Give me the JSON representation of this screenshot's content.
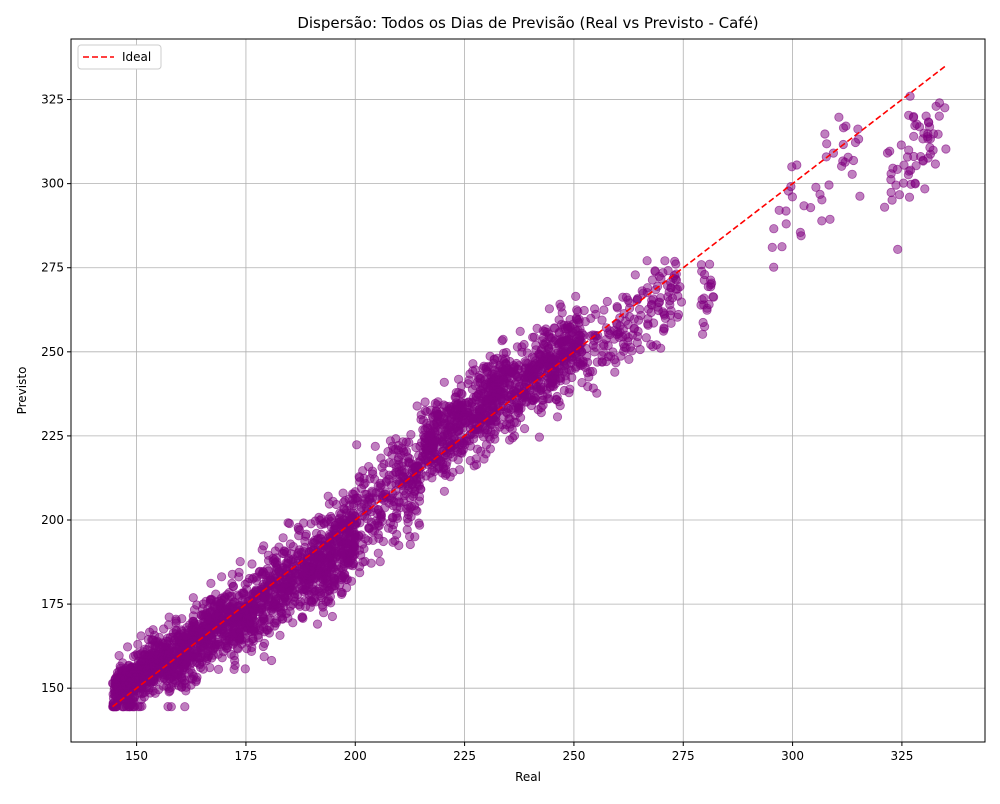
{
  "chart_data": {
    "type": "scatter",
    "title": "Dispersão: Todos os Dias de Previsão (Real vs Previsto - Café)",
    "xlabel": "Real",
    "ylabel": "Previsto",
    "xlim": [
      135,
      344
    ],
    "ylim": [
      134,
      343
    ],
    "xticks": [
      150,
      175,
      200,
      225,
      250,
      275,
      300,
      325
    ],
    "yticks": [
      150,
      175,
      200,
      225,
      250,
      275,
      300,
      325
    ],
    "grid": true,
    "legend_position": "top-left",
    "colors": {
      "points": "#800080",
      "ideal": "#ff0000"
    },
    "series": [
      {
        "name": "",
        "kind": "points",
        "density_model": [
          {
            "x_range": [
              144.5,
              157
            ],
            "center_offset": 3,
            "spread": 7,
            "count": 420
          },
          {
            "x_range": [
              157,
              172
            ],
            "center_offset": 0,
            "spread": 9,
            "count": 480
          },
          {
            "x_range": [
              172,
              188
            ],
            "center_offset": -3,
            "spread": 10,
            "count": 460
          },
          {
            "x_range": [
              188,
              200
            ],
            "center_offset": -4,
            "spread": 11,
            "count": 430
          },
          {
            "x_range": [
              200,
              215
            ],
            "center_offset": 0,
            "spread": 12,
            "count": 260
          },
          {
            "x_range": [
              215,
              235
            ],
            "center_offset": 5,
            "spread": 10,
            "count": 560
          },
          {
            "x_range": [
              235,
              252
            ],
            "center_offset": 2,
            "spread": 10,
            "count": 420
          },
          {
            "x_range": [
              252,
              275
            ],
            "center_offset": -5,
            "spread": 9,
            "count": 170
          },
          {
            "x_range": [
              279,
              282
            ],
            "center_offset": -15,
            "spread": 9,
            "count": 22
          },
          {
            "x_range": [
              295,
              316
            ],
            "center_offset": -6,
            "spread": 13,
            "count": 40
          },
          {
            "x_range": [
              321,
              335.5
            ],
            "center_offset": -18,
            "spread": 11,
            "count": 60
          }
        ]
      },
      {
        "name": "Ideal",
        "kind": "line",
        "x": [
          144.5,
          335
        ],
        "y": [
          144.5,
          335
        ]
      }
    ]
  }
}
